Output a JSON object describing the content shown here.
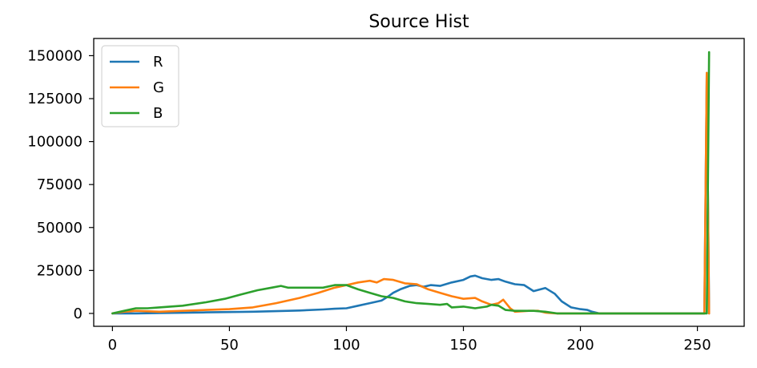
{
  "chart_data": {
    "type": "line",
    "title": "Source Hist",
    "xlabel": "",
    "ylabel": "",
    "xlim": [
      -8,
      270
    ],
    "ylim": [
      -7500,
      160000
    ],
    "xticks": [
      0,
      50,
      100,
      150,
      200,
      250
    ],
    "yticks": [
      0,
      25000,
      50000,
      75000,
      100000,
      125000,
      150000
    ],
    "grid": false,
    "legend_position": "top-left",
    "series": [
      {
        "name": "R",
        "color": "#1f77b4",
        "points": [
          [
            0,
            0
          ],
          [
            10,
            0
          ],
          [
            20,
            200
          ],
          [
            30,
            400
          ],
          [
            40,
            600
          ],
          [
            50,
            800
          ],
          [
            60,
            1000
          ],
          [
            70,
            1300
          ],
          [
            80,
            1700
          ],
          [
            90,
            2300
          ],
          [
            95,
            2700
          ],
          [
            100,
            3000
          ],
          [
            105,
            4500
          ],
          [
            110,
            6000
          ],
          [
            115,
            7500
          ],
          [
            118,
            10000
          ],
          [
            120,
            12000
          ],
          [
            123,
            14000
          ],
          [
            127,
            16000
          ],
          [
            130,
            16500
          ],
          [
            133,
            15500
          ],
          [
            136,
            16500
          ],
          [
            140,
            16000
          ],
          [
            145,
            18000
          ],
          [
            150,
            19500
          ],
          [
            153,
            21500
          ],
          [
            155,
            22000
          ],
          [
            158,
            20500
          ],
          [
            162,
            19500
          ],
          [
            165,
            20000
          ],
          [
            168,
            18500
          ],
          [
            172,
            17000
          ],
          [
            176,
            16500
          ],
          [
            180,
            13000
          ],
          [
            185,
            14800
          ],
          [
            189,
            11500
          ],
          [
            192,
            7000
          ],
          [
            196,
            3500
          ],
          [
            200,
            2500
          ],
          [
            203,
            2000
          ],
          [
            205,
            1000
          ],
          [
            208,
            0
          ],
          [
            220,
            0
          ],
          [
            240,
            0
          ],
          [
            253,
            0
          ],
          [
            254,
            140000
          ],
          [
            255,
            0
          ]
        ]
      },
      {
        "name": "G",
        "color": "#ff7f0e",
        "points": [
          [
            0,
            0
          ],
          [
            5,
            1000
          ],
          [
            10,
            1500
          ],
          [
            20,
            1000
          ],
          [
            30,
            1500
          ],
          [
            40,
            2000
          ],
          [
            50,
            2500
          ],
          [
            60,
            3500
          ],
          [
            70,
            6000
          ],
          [
            80,
            9000
          ],
          [
            88,
            12000
          ],
          [
            95,
            15000
          ],
          [
            100,
            16500
          ],
          [
            105,
            18000
          ],
          [
            110,
            19000
          ],
          [
            113,
            18000
          ],
          [
            116,
            20000
          ],
          [
            120,
            19500
          ],
          [
            125,
            17500
          ],
          [
            130,
            17000
          ],
          [
            135,
            14000
          ],
          [
            140,
            12000
          ],
          [
            145,
            10000
          ],
          [
            150,
            8500
          ],
          [
            155,
            9000
          ],
          [
            158,
            7000
          ],
          [
            162,
            5000
          ],
          [
            165,
            6000
          ],
          [
            167,
            8000
          ],
          [
            170,
            3000
          ],
          [
            172,
            1000
          ],
          [
            178,
            1500
          ],
          [
            182,
            1500
          ],
          [
            185,
            500
          ],
          [
            190,
            0
          ],
          [
            200,
            0
          ],
          [
            220,
            0
          ],
          [
            240,
            0
          ],
          [
            253,
            0
          ],
          [
            254,
            140000
          ],
          [
            255,
            0
          ]
        ]
      },
      {
        "name": "B",
        "color": "#2ca02c",
        "points": [
          [
            0,
            0
          ],
          [
            5,
            1500
          ],
          [
            10,
            3000
          ],
          [
            15,
            3000
          ],
          [
            20,
            3500
          ],
          [
            30,
            4500
          ],
          [
            40,
            6500
          ],
          [
            48,
            8500
          ],
          [
            55,
            11000
          ],
          [
            62,
            13500
          ],
          [
            68,
            15000
          ],
          [
            72,
            16000
          ],
          [
            75,
            15000
          ],
          [
            80,
            15000
          ],
          [
            90,
            15000
          ],
          [
            95,
            16500
          ],
          [
            100,
            16500
          ],
          [
            105,
            14000
          ],
          [
            110,
            12000
          ],
          [
            115,
            10000
          ],
          [
            120,
            9000
          ],
          [
            125,
            7000
          ],
          [
            130,
            6000
          ],
          [
            135,
            5500
          ],
          [
            140,
            5000
          ],
          [
            143,
            5500
          ],
          [
            145,
            3500
          ],
          [
            150,
            4000
          ],
          [
            155,
            3000
          ],
          [
            160,
            4000
          ],
          [
            162,
            5000
          ],
          [
            165,
            4500
          ],
          [
            168,
            2000
          ],
          [
            172,
            1500
          ],
          [
            176,
            1500
          ],
          [
            180,
            1500
          ],
          [
            185,
            1000
          ],
          [
            190,
            0
          ],
          [
            200,
            0
          ],
          [
            220,
            0
          ],
          [
            240,
            0
          ],
          [
            254,
            0
          ],
          [
            255,
            152000
          ]
        ]
      }
    ]
  }
}
